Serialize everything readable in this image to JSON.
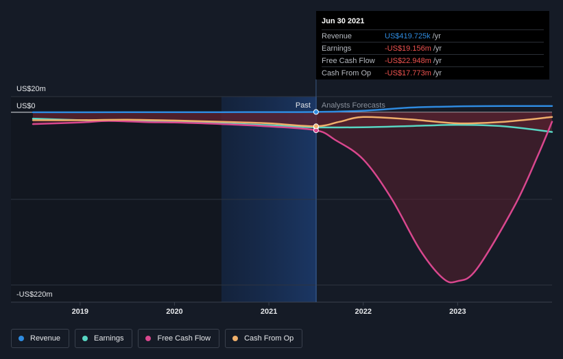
{
  "chart_data": {
    "type": "line",
    "x_ticks": [
      "2019",
      "2020",
      "2021",
      "2022",
      "2023"
    ],
    "y_labels": {
      "top": "US$20m",
      "zero": "US$0",
      "bottom": "-US$220m"
    },
    "ylim": [
      -220,
      20
    ],
    "xlim": [
      2018.5,
      2024.0
    ],
    "divider_x": 2021.5,
    "past_label": "Past",
    "forecast_label": "Analysts Forecasts",
    "series": [
      {
        "name": "Revenue",
        "color": "#2f8be0",
        "points": [
          [
            2018.5,
            0.0
          ],
          [
            2019.0,
            0.0
          ],
          [
            2019.5,
            0.1
          ],
          [
            2020.0,
            0.1
          ],
          [
            2020.5,
            0.2
          ],
          [
            2021.0,
            0.3
          ],
          [
            2021.5,
            0.42
          ],
          [
            2022.0,
            2.0
          ],
          [
            2022.5,
            6.0
          ],
          [
            2023.0,
            7.5
          ],
          [
            2023.5,
            8.0
          ],
          [
            2024.0,
            8.0
          ]
        ]
      },
      {
        "name": "Earnings",
        "color": "#58d6c3",
        "points": [
          [
            2018.5,
            -8.0
          ],
          [
            2019.0,
            -10.0
          ],
          [
            2019.5,
            -11.0
          ],
          [
            2020.0,
            -12.0
          ],
          [
            2020.5,
            -14.0
          ],
          [
            2021.0,
            -16.5
          ],
          [
            2021.5,
            -19.156
          ],
          [
            2022.0,
            -19.0
          ],
          [
            2022.5,
            -17.5
          ],
          [
            2023.0,
            -16.0
          ],
          [
            2023.5,
            -18.0
          ],
          [
            2024.0,
            -25.0
          ]
        ]
      },
      {
        "name": "Free Cash Flow",
        "color": "#d9478e",
        "points": [
          [
            2018.5,
            -15.0
          ],
          [
            2019.0,
            -13.0
          ],
          [
            2019.3,
            -11.0
          ],
          [
            2019.7,
            -12.5
          ],
          [
            2020.0,
            -13.0
          ],
          [
            2020.5,
            -15.0
          ],
          [
            2021.0,
            -18.0
          ],
          [
            2021.5,
            -22.948
          ],
          [
            2021.7,
            -35.0
          ],
          [
            2022.0,
            -60.0
          ],
          [
            2022.3,
            -110.0
          ],
          [
            2022.6,
            -175.0
          ],
          [
            2022.85,
            -212.0
          ],
          [
            2023.0,
            -215.0
          ],
          [
            2023.2,
            -200.0
          ],
          [
            2023.6,
            -120.0
          ],
          [
            2023.85,
            -55.0
          ],
          [
            2024.0,
            -12.0
          ]
        ]
      },
      {
        "name": "Cash From Op",
        "color": "#f0b06b",
        "points": [
          [
            2018.5,
            -10.0
          ],
          [
            2019.0,
            -10.0
          ],
          [
            2019.5,
            -9.5
          ],
          [
            2020.0,
            -10.5
          ],
          [
            2020.5,
            -12.0
          ],
          [
            2021.0,
            -14.0
          ],
          [
            2021.5,
            -17.773
          ],
          [
            2021.75,
            -12.0
          ],
          [
            2022.0,
            -6.0
          ],
          [
            2022.5,
            -9.0
          ],
          [
            2023.0,
            -14.0
          ],
          [
            2023.5,
            -12.0
          ],
          [
            2024.0,
            -6.0
          ]
        ]
      }
    ]
  },
  "tooltip": {
    "date": "Jun 30 2021",
    "rows": [
      {
        "label": "Revenue",
        "value": "US$419.725k",
        "unit": "/yr",
        "color": "#2f8be0"
      },
      {
        "label": "Earnings",
        "value": "-US$19.156m",
        "unit": "/yr",
        "color": "#ef5350"
      },
      {
        "label": "Free Cash Flow",
        "value": "-US$22.948m",
        "unit": "/yr",
        "color": "#ef5350"
      },
      {
        "label": "Cash From Op",
        "value": "-US$17.773m",
        "unit": "/yr",
        "color": "#ef5350"
      }
    ]
  },
  "legend": [
    {
      "label": "Revenue",
      "color": "#2f8be0"
    },
    {
      "label": "Earnings",
      "color": "#58d6c3"
    },
    {
      "label": "Free Cash Flow",
      "color": "#d9478e"
    },
    {
      "label": "Cash From Op",
      "color": "#f0b06b"
    }
  ]
}
